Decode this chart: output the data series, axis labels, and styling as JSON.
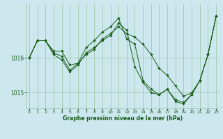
{
  "bg_color": "#cce8ee",
  "grid_color": "#88bb88",
  "line_color": "#1a5c1a",
  "marker_color": "#1a5c1a",
  "xlabel": "Graphe pression niveau de la mer (hPa)",
  "ylim": [
    1014.55,
    1017.55
  ],
  "yticks": [
    1015,
    1016
  ],
  "xlim": [
    -0.3,
    23.3
  ],
  "xticks": [
    0,
    1,
    2,
    3,
    4,
    5,
    6,
    7,
    8,
    9,
    10,
    11,
    12,
    13,
    14,
    15,
    16,
    17,
    18,
    19,
    20,
    21,
    22,
    23
  ],
  "series": [
    {
      "x": [
        0,
        1,
        2,
        3,
        4,
        5,
        6,
        7,
        8,
        9,
        10,
        11,
        12,
        13,
        14,
        15,
        16,
        17,
        18,
        19,
        20,
        21,
        22,
        23
      ],
      "y": [
        1016.0,
        1016.5,
        1016.5,
        1016.2,
        1016.2,
        1015.8,
        1015.85,
        1016.1,
        1016.25,
        1016.55,
        1016.7,
        1016.9,
        1016.7,
        1016.6,
        1016.4,
        1016.1,
        1015.7,
        1015.5,
        1015.2,
        1014.9,
        1015.0,
        1015.35,
        1016.1,
        1017.2
      ]
    },
    {
      "x": [
        0,
        1,
        2,
        3,
        4,
        5,
        6,
        7,
        8,
        9,
        10,
        11,
        12,
        13,
        14,
        15,
        16,
        17,
        18,
        19,
        20,
        21,
        22,
        23
      ],
      "y": [
        1016.0,
        1016.5,
        1016.5,
        1016.15,
        1016.05,
        1015.65,
        1015.85,
        1016.3,
        1016.5,
        1016.75,
        1016.9,
        1017.15,
        1016.55,
        1016.4,
        1015.35,
        1015.1,
        1014.95,
        1015.1,
        1014.8,
        1014.72,
        1014.95,
        1015.35,
        1016.1,
        1017.2
      ]
    },
    {
      "x": [
        0,
        1,
        2,
        3,
        4,
        5,
        6,
        7,
        8,
        9,
        10,
        11,
        12,
        13,
        14,
        15,
        16,
        17,
        18,
        19,
        20,
        21,
        22,
        23
      ],
      "y": [
        1016.0,
        1016.5,
        1016.5,
        1016.1,
        1015.95,
        1015.6,
        1015.8,
        1016.15,
        1016.3,
        1016.5,
        1016.65,
        1017.0,
        1016.8,
        1015.75,
        1015.3,
        1015.0,
        1014.95,
        1015.1,
        1014.75,
        1014.68,
        1014.95,
        1015.35,
        1016.1,
        1017.2
      ]
    }
  ]
}
